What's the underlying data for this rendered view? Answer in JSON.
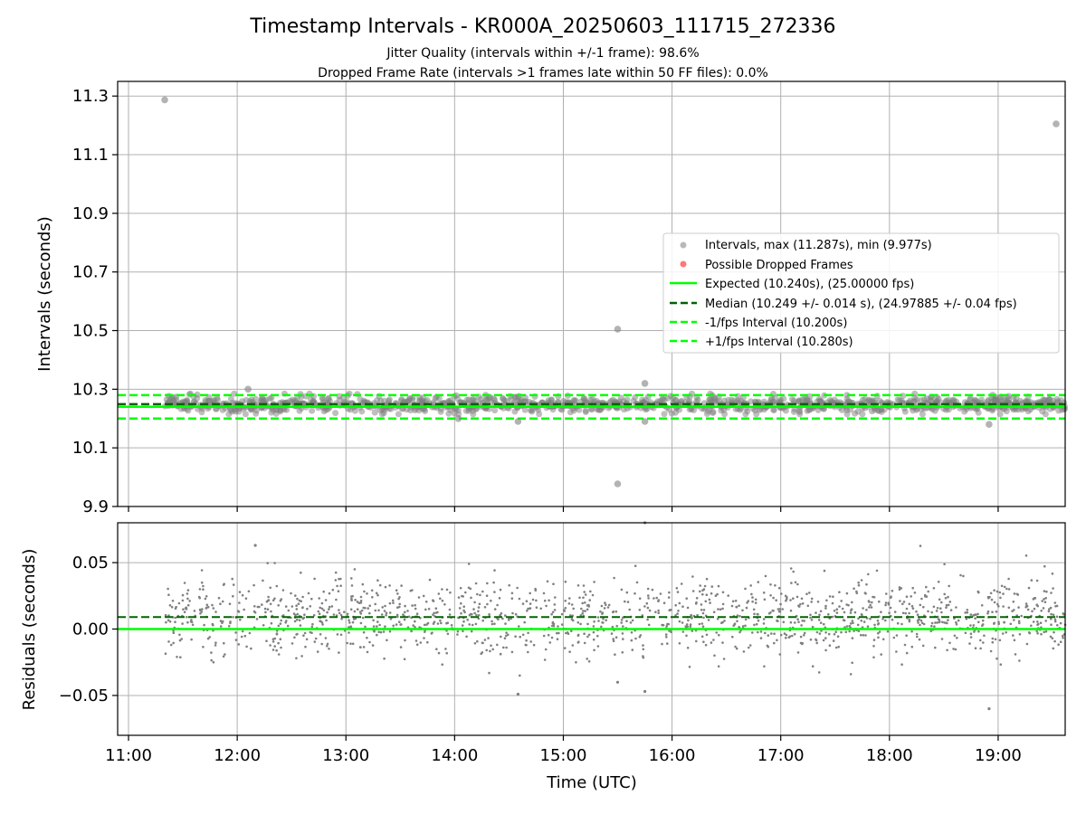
{
  "chart_data": [
    {
      "type": "scatter",
      "title": "Timestamp Intervals - KR000A_20250603_111715_272336",
      "subtitle_lines": [
        "Jitter Quality (intervals within +/-1 frame): 98.6%",
        "Dropped Frame Rate (intervals >1 frames late within 50 FF files): 0.0%"
      ],
      "xlabel": "",
      "ylabel": "Intervals (seconds)",
      "xlim": [
        "10:54",
        "19:37"
      ],
      "ylim": [
        9.9,
        11.35
      ],
      "yticks": [
        9.9,
        10.1,
        10.3,
        10.5,
        10.7,
        10.9,
        11.1,
        11.3
      ],
      "ytick_labels": [
        "9.9",
        "10.1",
        "10.3",
        "10.5",
        "10.7",
        "10.9",
        "11.1",
        "11.3"
      ],
      "grid": true,
      "legend_placement": "center-right",
      "legend": [
        "Intervals, max (11.287s), min (9.977s)",
        "Possible Dropped Frames",
        "Expected (10.240s), (25.00000 fps)",
        "Median (10.249 +/- 0.014 s), (24.97885 +/- 0.04 fps)",
        "-1/fps Interval (10.200s)",
        "+1/fps Interval (10.280s)"
      ],
      "reference_lines": {
        "expected": 10.24,
        "median": 10.249,
        "minus_one_fps": 10.2,
        "plus_one_fps": 10.28
      },
      "band": {
        "start": "11:20",
        "end": "19:37",
        "center": 10.249,
        "spread": 0.014
      },
      "outliers": [
        {
          "x": "11:20",
          "y": 11.287
        },
        {
          "x": "19:32",
          "y": 11.205
        },
        {
          "x": "15:30",
          "y": 10.505
        },
        {
          "x": "15:30",
          "y": 9.977
        },
        {
          "x": "15:45",
          "y": 10.32
        },
        {
          "x": "12:06",
          "y": 10.3
        },
        {
          "x": "14:35",
          "y": 10.19
        },
        {
          "x": "15:45",
          "y": 10.19
        },
        {
          "x": "18:55",
          "y": 10.18
        },
        {
          "x": "14:02",
          "y": 10.2
        }
      ],
      "colors": {
        "points": "#808080",
        "dropped": "#ff5555",
        "expected": "#00ff00",
        "median": "#006400",
        "limits": "#00ff00"
      }
    },
    {
      "type": "scatter",
      "xlabel": "Time (UTC)",
      "ylabel": "Residuals (seconds)",
      "xlim": [
        "10:54",
        "19:37"
      ],
      "ylim": [
        -0.08,
        0.08
      ],
      "yticks": [
        -0.05,
        0.0,
        0.05
      ],
      "ytick_labels": [
        "−0.05",
        "0.00",
        "0.05"
      ],
      "xticks": [
        "11:00",
        "12:00",
        "13:00",
        "14:00",
        "15:00",
        "16:00",
        "17:00",
        "18:00",
        "19:00"
      ],
      "grid": true,
      "reference_lines": {
        "zero": 0.0,
        "median_offset": 0.009
      },
      "band": {
        "start": "11:20",
        "end": "19:37",
        "center": 0.009,
        "spread": 0.014
      },
      "outliers": [
        {
          "x": "12:10",
          "y": 0.063
        },
        {
          "x": "15:45",
          "y": 0.08
        },
        {
          "x": "15:45",
          "y": -0.047
        },
        {
          "x": "14:35",
          "y": -0.049
        },
        {
          "x": "18:55",
          "y": -0.06
        },
        {
          "x": "15:30",
          "y": -0.04
        }
      ],
      "colors": {
        "points": "#808080",
        "zero": "#00ff00",
        "median": "#006400"
      }
    }
  ]
}
